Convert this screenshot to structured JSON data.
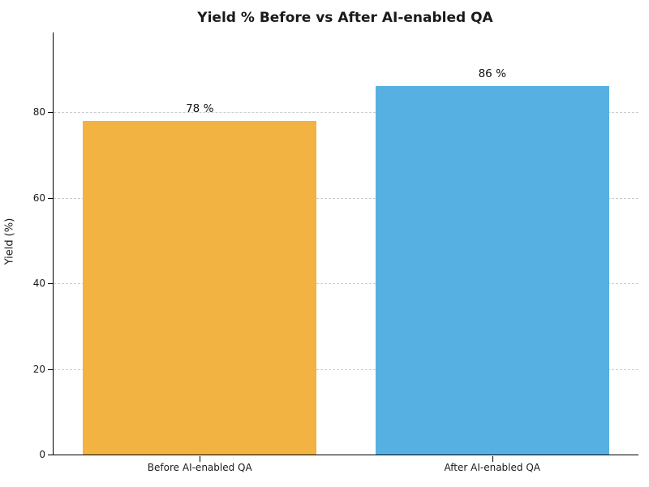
{
  "chart_data": {
    "type": "bar",
    "title": "Yield % Before vs After AI-enabled QA",
    "xlabel": "",
    "ylabel": "Yield (%)",
    "categories": [
      "Before AI-enabled QA",
      "After AI-enabled QA"
    ],
    "values": [
      78,
      86
    ],
    "bar_labels": [
      "78 %",
      "86 %"
    ],
    "bar_colors": [
      "#F2B342",
      "#56B1E2"
    ],
    "ylim": [
      0,
      98.6
    ],
    "yticks": [
      0,
      20,
      40,
      60,
      80
    ],
    "grid": "horizontal-dashed",
    "grid_color": "#cccccc",
    "legend": "none",
    "bar_width_fraction": 0.8
  }
}
